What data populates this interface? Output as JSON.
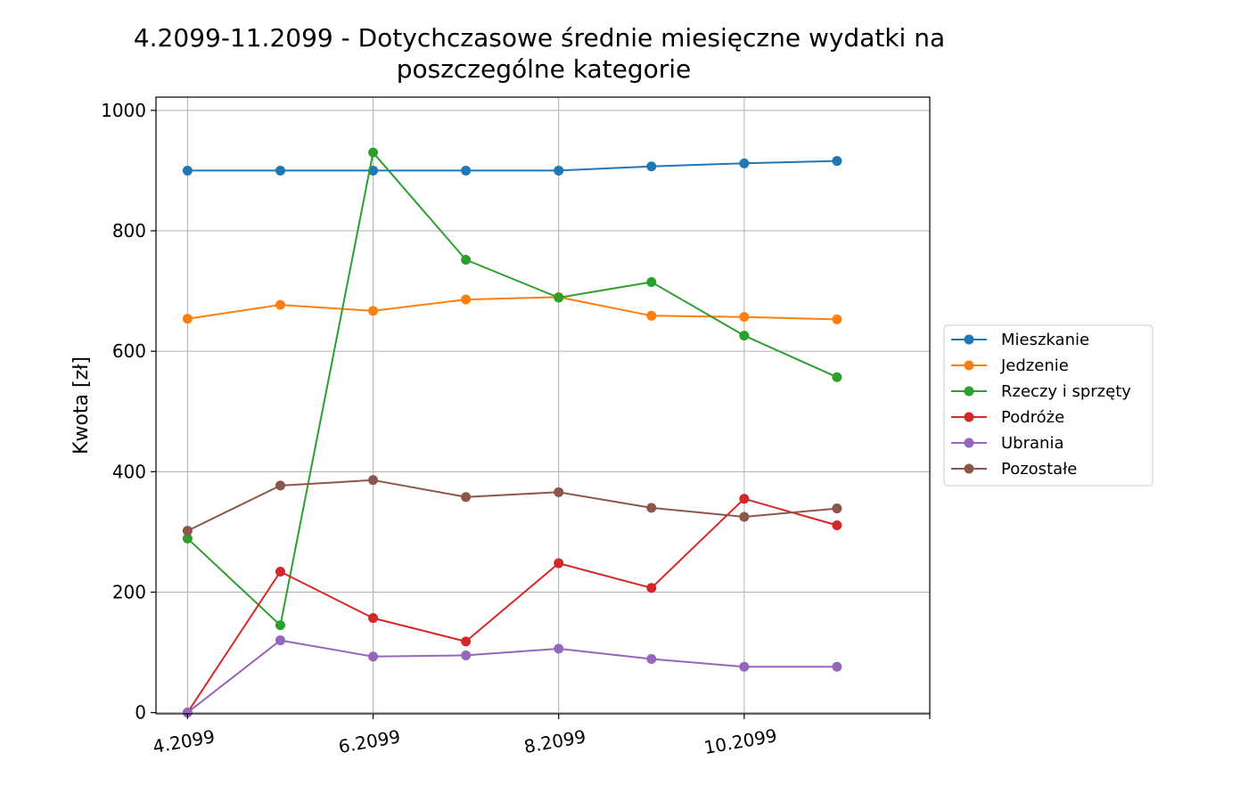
{
  "chart_data": {
    "type": "line",
    "title_line1": "4.2099-11.2099 - Dotychczasowe średnie miesięczne wydatki na",
    "title_line2": "poszczególne kategorie",
    "xlabel": "",
    "ylabel": "Kwota [zł]",
    "x": [
      4,
      5,
      6,
      7,
      8,
      9,
      10,
      11
    ],
    "xlim": [
      3.66,
      12
    ],
    "ylim": [
      -2,
      1022
    ],
    "xticks": [
      {
        "value": 4,
        "label": "4.2099"
      },
      {
        "value": 6,
        "label": "6.2099"
      },
      {
        "value": 8,
        "label": "8.2099"
      },
      {
        "value": 10,
        "label": "10.2099"
      }
    ],
    "yticks": [
      0,
      200,
      400,
      600,
      800,
      1000
    ],
    "grid": true,
    "legend_position": "right-outside",
    "series": [
      {
        "name": "Mieszkanie",
        "color": "#1f77b4",
        "values": [
          900,
          900,
          900,
          900,
          900,
          907,
          912,
          916
        ]
      },
      {
        "name": "Jedzenie",
        "color": "#ff7f0e",
        "values": [
          654,
          677,
          667,
          686,
          690,
          659,
          657,
          653
        ]
      },
      {
        "name": "Rzeczy i sprzęty",
        "color": "#2ca02c",
        "values": [
          289,
          145,
          930,
          752,
          689,
          715,
          626,
          557
        ]
      },
      {
        "name": "Podróże",
        "color": "#d62728",
        "values": [
          0,
          234,
          157,
          118,
          248,
          207,
          355,
          311
        ]
      },
      {
        "name": "Ubrania",
        "color": "#9467bd",
        "values": [
          0,
          120,
          93,
          95,
          106,
          89,
          76,
          76
        ]
      },
      {
        "name": "Pozostałe",
        "color": "#8c564b",
        "values": [
          302,
          377,
          386,
          358,
          366,
          340,
          325,
          339
        ]
      }
    ]
  }
}
